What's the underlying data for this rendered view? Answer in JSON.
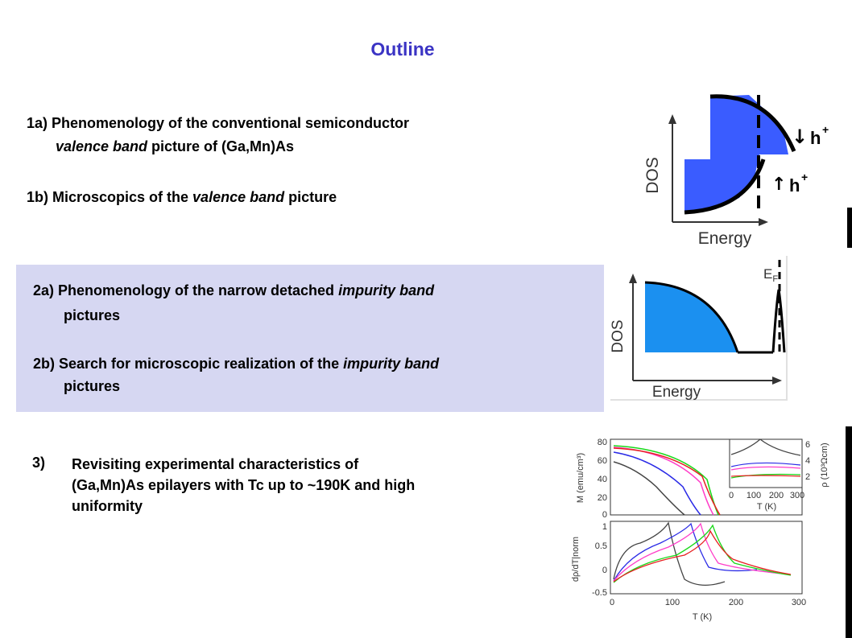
{
  "slide": {
    "title": "Outline",
    "items": {
      "i1a": {
        "prefix": "1a) Phenomenology of the conventional semiconductor",
        "italic": "valence band",
        "suffix": " picture of (Ga,Mn)As"
      },
      "i1b": {
        "prefix": "1b) Microscopics of the ",
        "italic": "valence band",
        "suffix": " picture"
      },
      "i2a": {
        "prefix": "2a) Phenomenology of the narrow detached ",
        "italic": "impurity band",
        "line2": "pictures"
      },
      "i2b": {
        "prefix": "2b) Search for microscopic realization of the ",
        "italic": "impurity  band",
        "line2": "pictures"
      },
      "i3": {
        "number": "3)",
        "line1": "Revisiting experimental characteristics of",
        "line2": "(Ga,Mn)As epilayers with Tc up to ~190K and high",
        "line3": "uniformity"
      }
    }
  },
  "figures": {
    "dos1": {
      "ylabel": "DOS",
      "xlabel": "Energy",
      "arrow_down": "↓",
      "arrow_up": "↑",
      "hole": "h",
      "plus": "+"
    },
    "dos2": {
      "ylabel": "DOS",
      "xlabel": "Energy",
      "ef": "E",
      "ef_sub": "F"
    },
    "exp": {
      "top": {
        "ylabel": "M (emu/cm³)",
        "yticks": [
          "80",
          "60",
          "40",
          "20",
          "0"
        ],
        "inset": {
          "yticks": [
            "6",
            "4",
            "2"
          ],
          "xticks": [
            "0",
            "100",
            "200",
            "300"
          ],
          "xlabel": "T  (K)",
          "ylabel": "ρ (10³Ωcm)"
        }
      },
      "bottom": {
        "ylabel": "dρ/dT|norm",
        "yticks": [
          "1",
          "0.5",
          "0",
          "-0.5"
        ],
        "xticks": [
          "0",
          "100",
          "200",
          "300"
        ],
        "xlabel": "T   (K)"
      },
      "series_colors": [
        "#444444",
        "#2a2ae6",
        "#ff3cc8",
        "#18d818",
        "#e62020"
      ]
    }
  }
}
